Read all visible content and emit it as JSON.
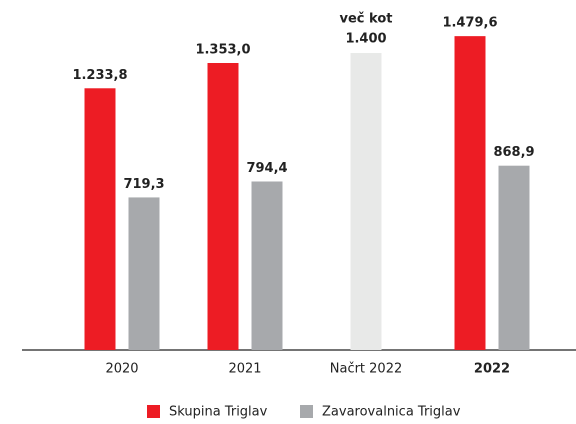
{
  "chart_data": {
    "type": "bar",
    "categories": [
      "2020",
      "2021",
      "Načrt 2022",
      "2022"
    ],
    "emphasized_category": 3,
    "series": [
      {
        "name": "Skupina Triglav",
        "color": "#ed1c24",
        "values": [
          1233.8,
          1353.0,
          null,
          1479.6
        ],
        "value_labels": [
          "1.233,8",
          "1.353,0",
          null,
          "1.479,6"
        ]
      },
      {
        "name": "Zavarovalnica Triglav",
        "color": "#a7a9ac",
        "values": [
          719.3,
          794.4,
          null,
          868.9
        ],
        "value_labels": [
          "719,3",
          "794,4",
          null,
          "868,9"
        ]
      }
    ],
    "plan": {
      "category": 2,
      "value": 1400,
      "value_label_lines": [
        "več kot",
        "1.400"
      ],
      "color": "#e8e9e8"
    },
    "ylim": [
      0,
      1650
    ]
  }
}
